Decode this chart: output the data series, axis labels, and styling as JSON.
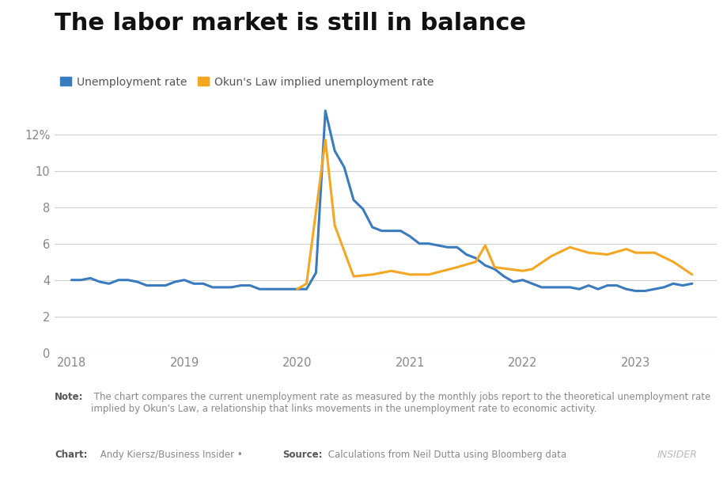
{
  "title": "The labor market is still in balance",
  "legend_labels": [
    "Unemployment rate",
    "Okun's Law implied unemployment rate"
  ],
  "note_bold": "Note:",
  "note_rest": " The chart compares the current unemployment rate as measured by the monthly jobs report to the theoretical unemployment rate implied by Okun's Law, a relationship that links movements in the unemployment rate to economic activity.",
  "chart_credit_bold": "Chart:",
  "chart_credit_rest": " Andy Kiersz/Business Insider • ",
  "chart_source_bold": "Source:",
  "chart_source_rest": " Calculations from Neil Dutta using Bloomberg data",
  "insider_text": "INSIDER",
  "ylim": [
    0,
    14
  ],
  "yticks": [
    0,
    2,
    4,
    6,
    8,
    10,
    12
  ],
  "ytick_labels": [
    "0",
    "2",
    "4",
    "6",
    "8",
    "10",
    "12%"
  ],
  "background_color": "#ffffff",
  "grid_color": "#d0d0d0",
  "unemployment_x": [
    2018.0,
    2018.083,
    2018.167,
    2018.25,
    2018.333,
    2018.417,
    2018.5,
    2018.583,
    2018.667,
    2018.75,
    2018.833,
    2018.917,
    2019.0,
    2019.083,
    2019.167,
    2019.25,
    2019.333,
    2019.417,
    2019.5,
    2019.583,
    2019.667,
    2019.75,
    2019.833,
    2019.917,
    2020.0,
    2020.083,
    2020.167,
    2020.25,
    2020.333,
    2020.417,
    2020.5,
    2020.583,
    2020.667,
    2020.75,
    2020.833,
    2020.917,
    2021.0,
    2021.083,
    2021.167,
    2021.25,
    2021.333,
    2021.417,
    2021.5,
    2021.583,
    2021.667,
    2021.75,
    2021.833,
    2021.917,
    2022.0,
    2022.083,
    2022.167,
    2022.25,
    2022.333,
    2022.417,
    2022.5,
    2022.583,
    2022.667,
    2022.75,
    2022.833,
    2022.917,
    2023.0,
    2023.083,
    2023.167,
    2023.25,
    2023.333,
    2023.417,
    2023.5
  ],
  "unemployment_y": [
    4.0,
    4.0,
    4.1,
    3.9,
    3.8,
    4.0,
    4.0,
    3.9,
    3.7,
    3.7,
    3.7,
    3.9,
    4.0,
    3.8,
    3.8,
    3.6,
    3.6,
    3.6,
    3.7,
    3.7,
    3.5,
    3.5,
    3.5,
    3.5,
    3.5,
    3.5,
    4.4,
    13.3,
    11.1,
    10.2,
    8.4,
    7.9,
    6.9,
    6.7,
    6.7,
    6.7,
    6.4,
    6.0,
    6.0,
    5.9,
    5.8,
    5.8,
    5.4,
    5.2,
    4.8,
    4.6,
    4.2,
    3.9,
    4.0,
    3.8,
    3.6,
    3.6,
    3.6,
    3.6,
    3.5,
    3.7,
    3.5,
    3.7,
    3.7,
    3.5,
    3.4,
    3.4,
    3.5,
    3.6,
    3.8,
    3.7,
    3.8
  ],
  "okun_x": [
    2020.0,
    2020.083,
    2020.25,
    2020.333,
    2020.5,
    2020.667,
    2020.833,
    2021.0,
    2021.167,
    2021.417,
    2021.583,
    2021.667,
    2021.75,
    2022.0,
    2022.083,
    2022.25,
    2022.417,
    2022.583,
    2022.75,
    2022.917,
    2023.0,
    2023.167,
    2023.333,
    2023.5
  ],
  "okun_y": [
    3.5,
    3.8,
    11.7,
    7.0,
    4.2,
    4.3,
    4.5,
    4.3,
    4.3,
    4.7,
    5.0,
    5.9,
    4.7,
    4.5,
    4.6,
    5.3,
    5.8,
    5.5,
    5.4,
    5.7,
    5.5,
    5.5,
    5.0,
    4.3
  ],
  "xtick_positions": [
    2018,
    2019,
    2020,
    2021,
    2022,
    2023
  ],
  "xtick_labels": [
    "2018",
    "2019",
    "2020",
    "2021",
    "2022",
    "2023"
  ],
  "unemployment_color": "#3a7abf",
  "okun_color": "#f5a623",
  "line_width": 2.2,
  "title_fontsize": 22,
  "title_fontweight": "bold",
  "legend_fontsize": 10,
  "axis_fontsize": 10.5,
  "note_fontsize": 8.5,
  "credit_fontsize": 8.5
}
